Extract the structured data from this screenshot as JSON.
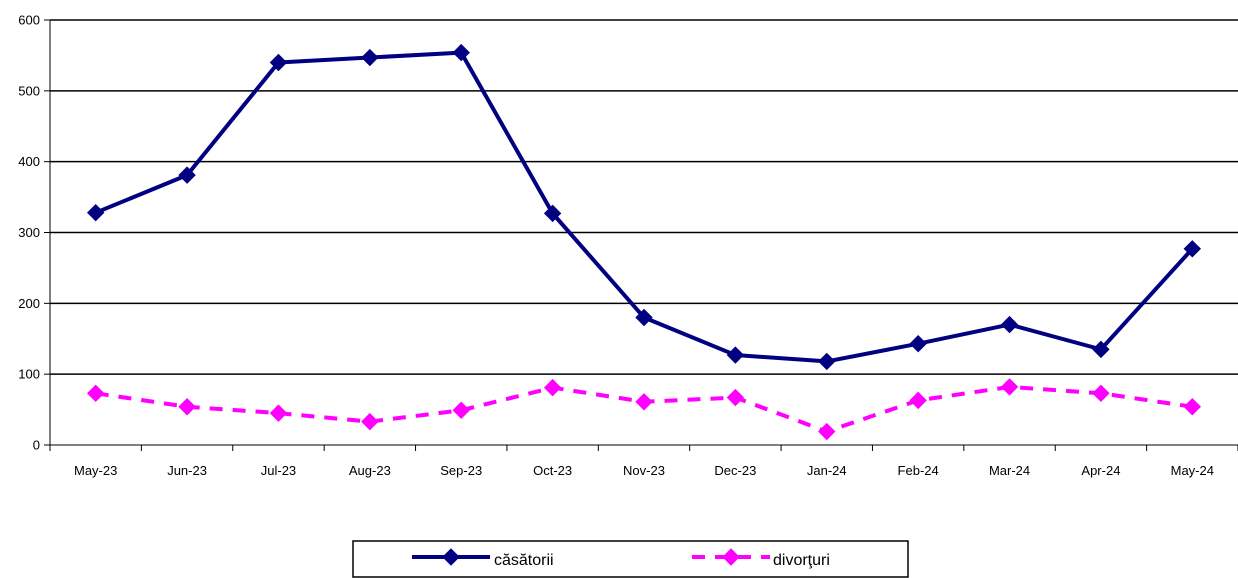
{
  "chart_data": {
    "type": "line",
    "title": "",
    "xlabel": "",
    "ylabel": "",
    "categories": [
      "May-23",
      "Jun-23",
      "Jul-23",
      "Aug-23",
      "Sep-23",
      "Oct-23",
      "Nov-23",
      "Dec-23",
      "Jan-24",
      "Feb-24",
      "Mar-24",
      "Apr-24",
      "May-24"
    ],
    "ylim": [
      0,
      600
    ],
    "yticks": [
      0,
      100,
      200,
      300,
      400,
      500,
      600
    ],
    "grid": true,
    "legend_position": "bottom",
    "series": [
      {
        "name": "căsătorii",
        "values": [
          328,
          381,
          540,
          547,
          554,
          327,
          180,
          127,
          118,
          143,
          170,
          135,
          277
        ],
        "color": "#000080",
        "line_style": "solid",
        "marker": "diamond"
      },
      {
        "name": "divorţuri",
        "values": [
          73,
          54,
          45,
          33,
          49,
          81,
          61,
          67,
          19,
          63,
          82,
          73,
          54
        ],
        "color": "#FF00FF",
        "line_style": "dashed",
        "marker": "diamond"
      }
    ]
  }
}
